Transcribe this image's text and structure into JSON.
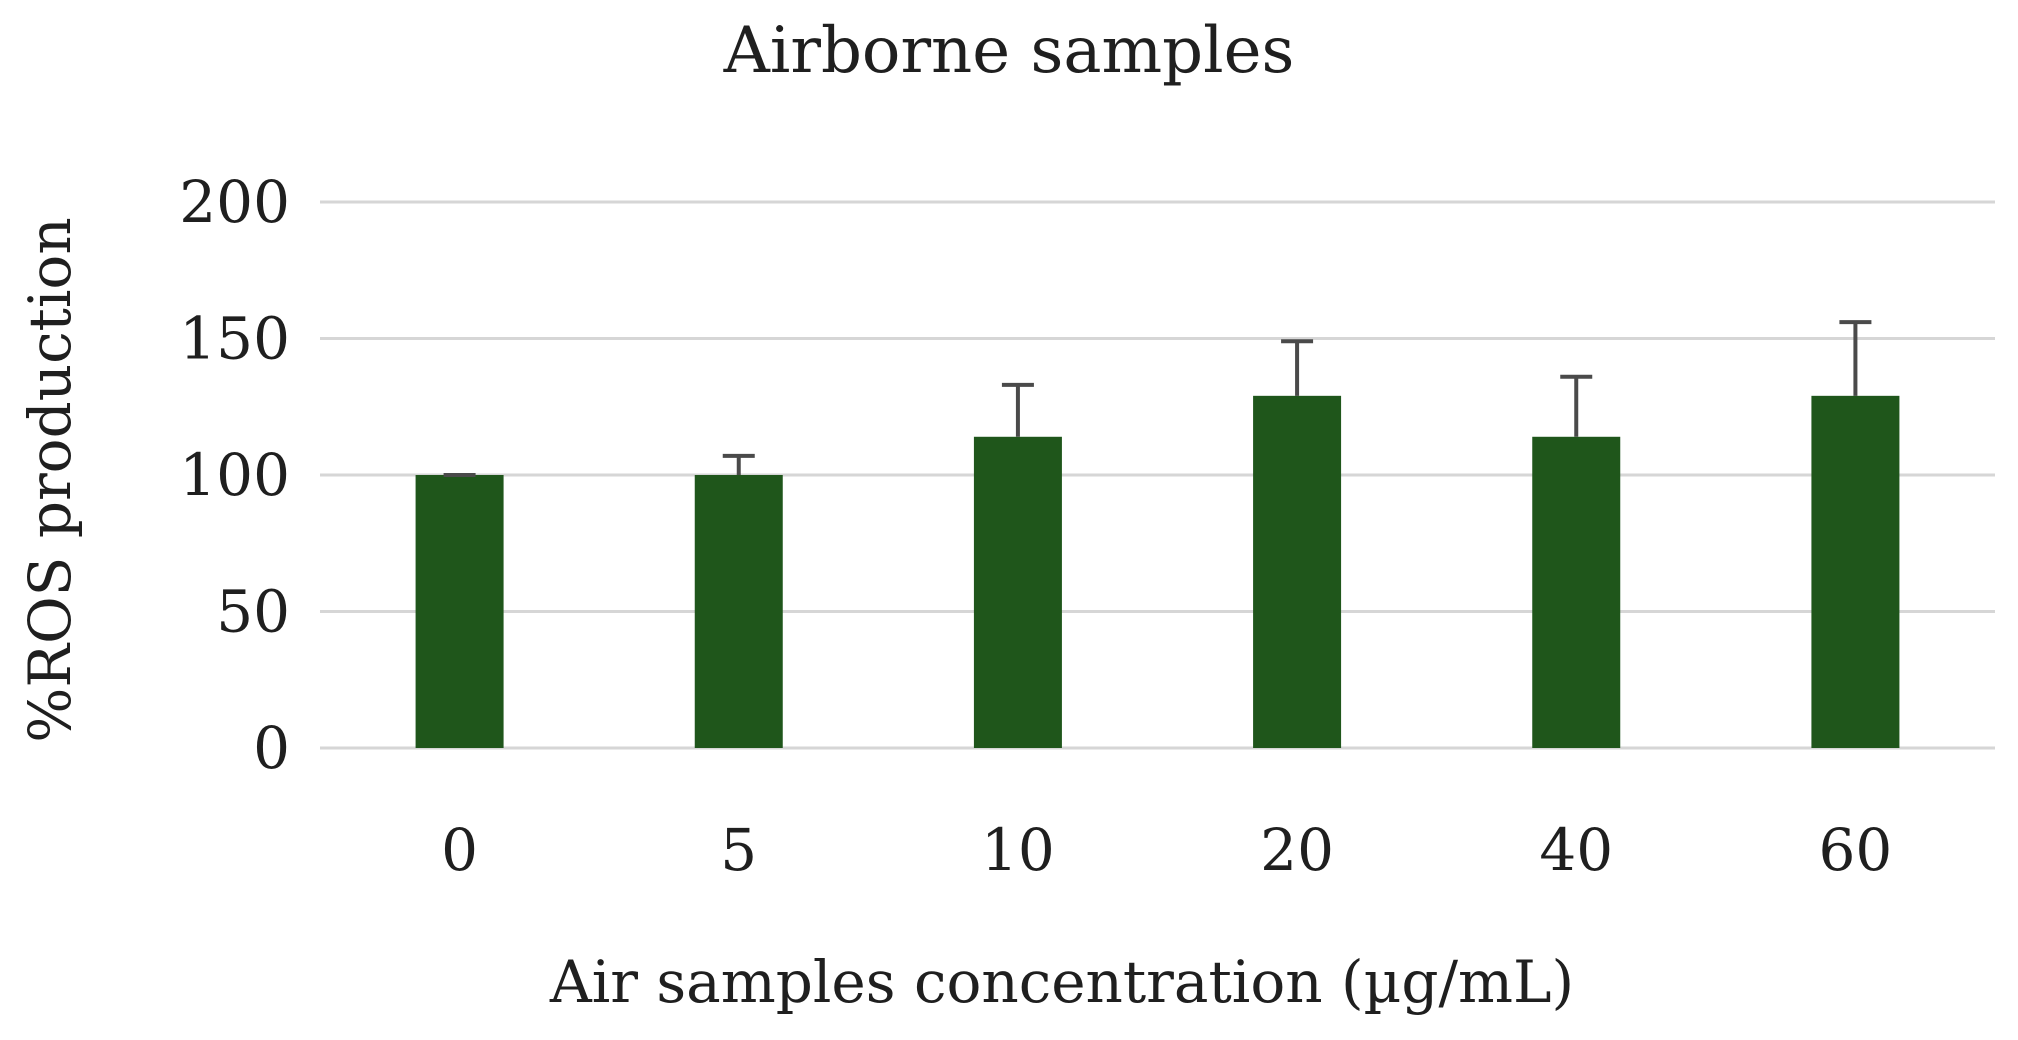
{
  "chart_data": {
    "type": "bar",
    "title": "Airborne samples",
    "xlabel": "Air samples concentration (µg/mL)",
    "ylabel": "%ROS production",
    "categories": [
      "0",
      "5",
      "10",
      "20",
      "40",
      "60"
    ],
    "values": [
      100,
      100,
      114,
      129,
      114,
      129
    ],
    "error_bars": [
      0,
      7,
      19,
      20,
      22,
      27
    ],
    "ylim": [
      0,
      200
    ],
    "yticks": [
      0,
      50,
      100,
      150,
      200
    ],
    "grid": true,
    "legend": false,
    "colors": {
      "bar": "#1f561b",
      "error_bar": "#4a4a4a",
      "grid": "#d6d6d6",
      "text": "#1f1f1f"
    }
  }
}
